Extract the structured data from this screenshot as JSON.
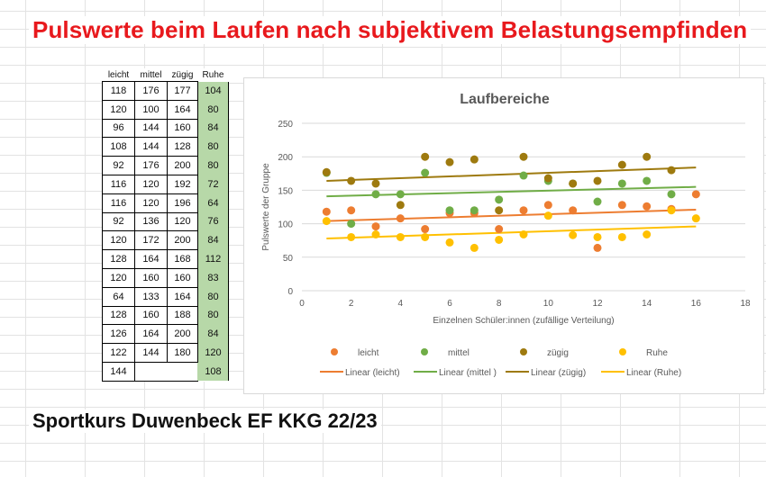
{
  "page_title": "Pulswerte beim Laufen nach subjektivem Belastungsempfinden",
  "footer_text": "Sportkurs Duwenbeck EF KKG 22/23",
  "table": {
    "headers": [
      "leicht",
      "mittel",
      "zügig",
      "Ruhe"
    ],
    "rows": [
      [
        "118",
        "176",
        "177",
        "104"
      ],
      [
        "120",
        "100",
        "164",
        "80"
      ],
      [
        "96",
        "144",
        "160",
        "84"
      ],
      [
        "108",
        "144",
        "128",
        "80"
      ],
      [
        "92",
        "176",
        "200",
        "80"
      ],
      [
        "116",
        "120",
        "192",
        "72"
      ],
      [
        "116",
        "120",
        "196",
        "64"
      ],
      [
        "92",
        "136",
        "120",
        "76"
      ],
      [
        "120",
        "172",
        "200",
        "84"
      ],
      [
        "128",
        "164",
        "168",
        "112"
      ],
      [
        "120",
        "160",
        "160",
        "83"
      ],
      [
        "64",
        "133",
        "164",
        "80"
      ],
      [
        "128",
        "160",
        "188",
        "80"
      ],
      [
        "126",
        "164",
        "200",
        "84"
      ],
      [
        "122",
        "144",
        "180",
        "120"
      ],
      [
        "144",
        "",
        "",
        "108"
      ]
    ]
  },
  "colors": {
    "title": "#e8191d",
    "leicht": "#ed7d31",
    "mittel": "#70ad47",
    "zuegig": "#9e7a0f",
    "ruhe": "#ffc000",
    "ruhe_column_fill": "#b7d8a8"
  },
  "chart_data": {
    "type": "scatter",
    "title": "Laufbereiche",
    "xlabel": "Einzelnen Schüler:innen (zufällige Verteilung)",
    "ylabel": "Pulswerte der Gruppe",
    "xlim": [
      0,
      18
    ],
    "ylim": [
      0,
      250
    ],
    "x_ticks": [
      0,
      2,
      4,
      6,
      8,
      10,
      12,
      14,
      16,
      18
    ],
    "y_ticks": [
      0,
      50,
      100,
      150,
      200,
      250
    ],
    "grid": true,
    "legend_position": "bottom",
    "series": [
      {
        "name": "leicht",
        "color": "#ed7d31",
        "x": [
          1,
          2,
          3,
          4,
          5,
          6,
          7,
          8,
          9,
          10,
          11,
          12,
          13,
          14,
          15,
          16
        ],
        "y": [
          118,
          120,
          96,
          108,
          92,
          116,
          116,
          92,
          120,
          128,
          120,
          64,
          128,
          126,
          122,
          144
        ]
      },
      {
        "name": "mittel",
        "color": "#70ad47",
        "x": [
          1,
          2,
          3,
          4,
          5,
          6,
          7,
          8,
          9,
          10,
          11,
          12,
          13,
          14,
          15
        ],
        "y": [
          176,
          100,
          144,
          144,
          176,
          120,
          120,
          136,
          172,
          164,
          160,
          133,
          160,
          164,
          144
        ]
      },
      {
        "name": "zügig",
        "color": "#9e7a0f",
        "x": [
          1,
          2,
          3,
          4,
          5,
          6,
          7,
          8,
          9,
          10,
          11,
          12,
          13,
          14,
          15
        ],
        "y": [
          177,
          164,
          160,
          128,
          200,
          192,
          196,
          120,
          200,
          168,
          160,
          164,
          188,
          200,
          180
        ]
      },
      {
        "name": "Ruhe",
        "color": "#ffc000",
        "x": [
          1,
          2,
          3,
          4,
          5,
          6,
          7,
          8,
          9,
          10,
          11,
          12,
          13,
          14,
          15,
          16
        ],
        "y": [
          104,
          80,
          84,
          80,
          80,
          72,
          64,
          76,
          84,
          112,
          83,
          80,
          80,
          84,
          120,
          108
        ]
      }
    ],
    "trendlines": [
      {
        "name": "Linear (leicht)",
        "color": "#ed7d31",
        "from": [
          1,
          104
        ],
        "to": [
          16,
          121
        ]
      },
      {
        "name": "Linear (mittel )",
        "color": "#70ad47",
        "from": [
          1,
          141
        ],
        "to": [
          16,
          155
        ]
      },
      {
        "name": "Linear (zügig)",
        "color": "#9e7a0f",
        "from": [
          1,
          164
        ],
        "to": [
          16,
          184
        ]
      },
      {
        "name": "Linear (Ruhe)",
        "color": "#ffc000",
        "from": [
          1,
          78
        ],
        "to": [
          16,
          96
        ]
      }
    ]
  }
}
